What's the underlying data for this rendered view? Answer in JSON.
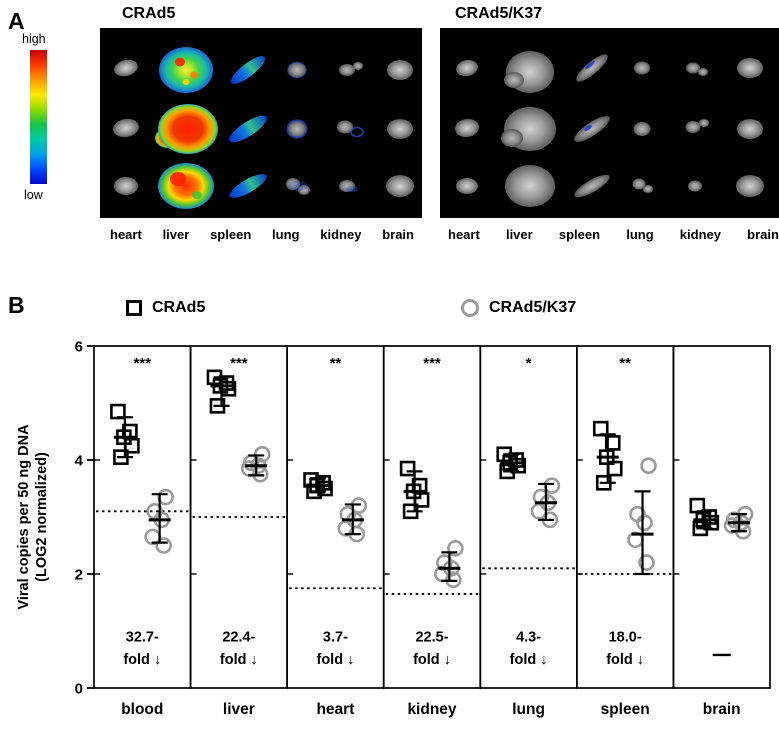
{
  "panelA": {
    "label": "A",
    "colorbar": {
      "high_label": "high",
      "low_label": "low"
    },
    "left_panel": {
      "title": "CRAd5",
      "organ_labels": [
        "heart",
        "liver",
        "spleen",
        "lung",
        "kidney",
        "brain"
      ]
    },
    "right_panel": {
      "title": "CRAd5/K37",
      "organ_labels": [
        "heart",
        "liver",
        "spleen",
        "lung",
        "kidney",
        "brain"
      ]
    }
  },
  "panelB": {
    "label": "B",
    "legend": [
      {
        "label": "CRAd5",
        "marker": "square",
        "color": "#000000"
      },
      {
        "label": "CRAd5/K37",
        "marker": "circle",
        "color": "#9a9a9a"
      }
    ],
    "ylabel_line1": "Viral copies per 50 ng DNA",
    "ylabel_line2": "(LOG2 normalized)"
  },
  "chart_data": {
    "type": "scatter",
    "categories": [
      "blood",
      "liver",
      "heart",
      "kidney",
      "lung",
      "spleen",
      "brain"
    ],
    "ylabel": "Viral copies per 50 ng DNA (LOG2 normalized)",
    "ylim": [
      0,
      6
    ],
    "yticks": [
      0,
      2,
      4,
      6
    ],
    "legend_position": "top",
    "series": [
      {
        "name": "CRAd5",
        "marker": "square",
        "color": "#000000",
        "points": [
          [
            4.85,
            4.5,
            4.4,
            4.25,
            4.05
          ],
          [
            5.45,
            5.35,
            5.3,
            5.25,
            4.95
          ],
          [
            3.65,
            3.6,
            3.55,
            3.5,
            3.45
          ],
          [
            3.85,
            3.55,
            3.45,
            3.3,
            3.1
          ],
          [
            4.1,
            4.0,
            3.95,
            3.9,
            3.8
          ],
          [
            4.55,
            4.3,
            4.05,
            3.85,
            3.6
          ],
          [
            3.2,
            3.0,
            2.95,
            2.9,
            2.8
          ]
        ],
        "mean": [
          4.4,
          5.3,
          3.55,
          3.45,
          3.95,
          4.05,
          2.95
        ],
        "error_low": [
          4.05,
          4.95,
          3.45,
          3.1,
          3.8,
          3.6,
          2.8
        ],
        "error_high": [
          4.75,
          5.45,
          3.68,
          3.8,
          4.1,
          4.45,
          3.1
        ]
      },
      {
        "name": "CRAd5/K37",
        "marker": "circle",
        "color": "#9a9a9a",
        "points": [
          [
            3.35,
            3.1,
            2.95,
            2.65,
            2.5
          ],
          [
            4.1,
            3.95,
            3.9,
            3.85,
            3.75
          ],
          [
            3.2,
            3.05,
            2.95,
            2.8,
            2.7
          ],
          [
            2.45,
            2.2,
            2.1,
            2.0,
            1.9
          ],
          [
            3.55,
            3.35,
            3.25,
            3.1,
            2.95
          ],
          [
            3.9,
            3.05,
            2.9,
            2.6,
            2.2
          ],
          [
            3.05,
            2.95,
            2.9,
            2.85,
            2.75
          ]
        ],
        "mean": [
          2.95,
          3.9,
          2.95,
          2.1,
          3.25,
          2.7,
          2.9
        ],
        "error_low": [
          2.55,
          3.73,
          2.7,
          1.88,
          2.95,
          2.0,
          2.75
        ],
        "error_high": [
          3.4,
          4.08,
          3.22,
          2.38,
          3.58,
          3.45,
          3.05
        ]
      }
    ],
    "significance": [
      "***",
      "***",
      "**",
      "***",
      "*",
      "**",
      ""
    ],
    "fold_change_line1": [
      "32.7-",
      "22.4-",
      "3.7-",
      "22.5-",
      "4.3-",
      "18.0-",
      ""
    ],
    "fold_change_line2": [
      "fold ↓",
      "fold ↓",
      "fold ↓",
      "fold ↓",
      "fold ↓",
      "fold ↓",
      ""
    ],
    "no_change_dash": "—",
    "dotted_baseline": [
      3.1,
      3.0,
      1.75,
      1.65,
      2.1,
      2.0,
      null
    ]
  }
}
